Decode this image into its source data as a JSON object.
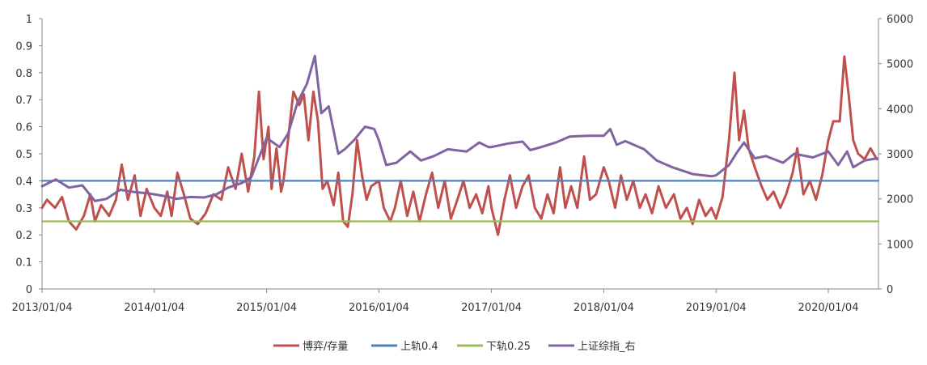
{
  "chart_data": {
    "type": "line",
    "title": "",
    "x_ticks": [
      "2013/01/04",
      "2014/01/04",
      "2015/01/04",
      "2016/01/04",
      "2017/01/04",
      "2018/01/04",
      "2019/01/04",
      "2020/01/04"
    ],
    "x_range": [
      "2013-01-04",
      "2020-06-15"
    ],
    "y_left": {
      "min": 0,
      "max": 1,
      "step": 0.1,
      "ticks": [
        "0",
        "0.1",
        "0.2",
        "0.3",
        "0.4",
        "0.5",
        "0.6",
        "0.7",
        "0.8",
        "0.9",
        "1"
      ]
    },
    "y_right": {
      "min": 0,
      "max": 6000,
      "step": 1000,
      "ticks": [
        "0",
        "1000",
        "2000",
        "3000",
        "4000",
        "5000",
        "6000"
      ]
    },
    "grid": false,
    "legend_position": "bottom",
    "series": [
      {
        "name": "博弈/存量",
        "color": "#c0504d",
        "axis": "left",
        "points": [
          [
            "2013-01-04",
            0.3
          ],
          [
            "2013-01-20",
            0.33
          ],
          [
            "2013-02-15",
            0.3
          ],
          [
            "2013-03-10",
            0.34
          ],
          [
            "2013-04-01",
            0.25
          ],
          [
            "2013-04-25",
            0.22
          ],
          [
            "2013-05-20",
            0.27
          ],
          [
            "2013-06-10",
            0.35
          ],
          [
            "2013-06-25",
            0.25
          ],
          [
            "2013-07-15",
            0.31
          ],
          [
            "2013-08-10",
            0.27
          ],
          [
            "2013-09-01",
            0.33
          ],
          [
            "2013-09-20",
            0.46
          ],
          [
            "2013-10-10",
            0.33
          ],
          [
            "2013-11-01",
            0.42
          ],
          [
            "2013-11-20",
            0.27
          ],
          [
            "2013-12-10",
            0.37
          ],
          [
            "2014-01-04",
            0.3
          ],
          [
            "2014-01-25",
            0.27
          ],
          [
            "2014-02-15",
            0.36
          ],
          [
            "2014-03-01",
            0.27
          ],
          [
            "2014-03-20",
            0.43
          ],
          [
            "2014-04-10",
            0.35
          ],
          [
            "2014-05-01",
            0.26
          ],
          [
            "2014-05-25",
            0.24
          ],
          [
            "2014-06-20",
            0.28
          ],
          [
            "2014-07-15",
            0.35
          ],
          [
            "2014-08-10",
            0.33
          ],
          [
            "2014-09-01",
            0.45
          ],
          [
            "2014-09-25",
            0.37
          ],
          [
            "2014-10-15",
            0.5
          ],
          [
            "2014-11-05",
            0.36
          ],
          [
            "2014-11-25",
            0.49
          ],
          [
            "2014-12-10",
            0.73
          ],
          [
            "2014-12-25",
            0.48
          ],
          [
            "2015-01-10",
            0.6
          ],
          [
            "2015-01-20",
            0.37
          ],
          [
            "2015-02-05",
            0.52
          ],
          [
            "2015-02-20",
            0.36
          ],
          [
            "2015-02-28",
            0.4
          ],
          [
            "2015-04-01",
            0.73
          ],
          [
            "2015-04-20",
            0.68
          ],
          [
            "2015-05-05",
            0.72
          ],
          [
            "2015-05-20",
            0.55
          ],
          [
            "2015-06-05",
            0.73
          ],
          [
            "2015-06-20",
            0.62
          ],
          [
            "2015-07-05",
            0.37
          ],
          [
            "2015-07-20",
            0.4
          ],
          [
            "2015-08-10",
            0.31
          ],
          [
            "2015-08-25",
            0.43
          ],
          [
            "2015-09-10",
            0.25
          ],
          [
            "2015-09-25",
            0.23
          ],
          [
            "2015-10-10",
            0.35
          ],
          [
            "2015-10-25",
            0.55
          ],
          [
            "2015-11-10",
            0.42
          ],
          [
            "2015-11-25",
            0.33
          ],
          [
            "2015-12-10",
            0.38
          ],
          [
            "2016-01-04",
            0.4
          ],
          [
            "2016-01-20",
            0.3
          ],
          [
            "2016-02-10",
            0.25
          ],
          [
            "2016-02-25",
            0.3
          ],
          [
            "2016-03-15",
            0.4
          ],
          [
            "2016-04-05",
            0.27
          ],
          [
            "2016-04-25",
            0.36
          ],
          [
            "2016-05-15",
            0.25
          ],
          [
            "2016-06-05",
            0.35
          ],
          [
            "2016-06-25",
            0.43
          ],
          [
            "2016-07-15",
            0.3
          ],
          [
            "2016-08-05",
            0.4
          ],
          [
            "2016-08-25",
            0.26
          ],
          [
            "2016-09-15",
            0.33
          ],
          [
            "2016-10-05",
            0.4
          ],
          [
            "2016-10-25",
            0.3
          ],
          [
            "2016-11-15",
            0.35
          ],
          [
            "2016-12-05",
            0.28
          ],
          [
            "2016-12-25",
            0.38
          ],
          [
            "2017-01-04",
            0.3
          ],
          [
            "2017-01-25",
            0.2
          ],
          [
            "2017-02-15",
            0.33
          ],
          [
            "2017-03-05",
            0.42
          ],
          [
            "2017-03-25",
            0.3
          ],
          [
            "2017-04-15",
            0.38
          ],
          [
            "2017-05-05",
            0.42
          ],
          [
            "2017-05-25",
            0.3
          ],
          [
            "2017-06-15",
            0.26
          ],
          [
            "2017-07-05",
            0.35
          ],
          [
            "2017-07-25",
            0.28
          ],
          [
            "2017-08-15",
            0.45
          ],
          [
            "2017-09-01",
            0.3
          ],
          [
            "2017-09-20",
            0.38
          ],
          [
            "2017-10-10",
            0.3
          ],
          [
            "2017-11-01",
            0.49
          ],
          [
            "2017-11-20",
            0.33
          ],
          [
            "2017-12-10",
            0.35
          ],
          [
            "2018-01-04",
            0.45
          ],
          [
            "2018-01-20",
            0.4
          ],
          [
            "2018-02-10",
            0.3
          ],
          [
            "2018-03-01",
            0.42
          ],
          [
            "2018-03-20",
            0.33
          ],
          [
            "2018-04-10",
            0.4
          ],
          [
            "2018-05-01",
            0.3
          ],
          [
            "2018-05-20",
            0.35
          ],
          [
            "2018-06-10",
            0.28
          ],
          [
            "2018-07-01",
            0.38
          ],
          [
            "2018-07-25",
            0.3
          ],
          [
            "2018-08-20",
            0.35
          ],
          [
            "2018-09-10",
            0.26
          ],
          [
            "2018-10-01",
            0.3
          ],
          [
            "2018-10-20",
            0.24
          ],
          [
            "2018-11-10",
            0.33
          ],
          [
            "2018-12-01",
            0.27
          ],
          [
            "2018-12-20",
            0.3
          ],
          [
            "2019-01-04",
            0.26
          ],
          [
            "2019-01-25",
            0.34
          ],
          [
            "2019-02-15",
            0.55
          ],
          [
            "2019-03-05",
            0.8
          ],
          [
            "2019-03-20",
            0.55
          ],
          [
            "2019-04-05",
            0.66
          ],
          [
            "2019-04-20",
            0.52
          ],
          [
            "2019-05-10",
            0.45
          ],
          [
            "2019-06-01",
            0.38
          ],
          [
            "2019-06-20",
            0.33
          ],
          [
            "2019-07-10",
            0.36
          ],
          [
            "2019-08-01",
            0.3
          ],
          [
            "2019-08-20",
            0.35
          ],
          [
            "2019-09-10",
            0.43
          ],
          [
            "2019-09-25",
            0.52
          ],
          [
            "2019-10-15",
            0.35
          ],
          [
            "2019-11-05",
            0.4
          ],
          [
            "2019-11-25",
            0.33
          ],
          [
            "2019-12-15",
            0.42
          ],
          [
            "2020-01-04",
            0.55
          ],
          [
            "2020-01-20",
            0.62
          ],
          [
            "2020-02-10",
            0.62
          ],
          [
            "2020-02-25",
            0.86
          ],
          [
            "2020-03-10",
            0.72
          ],
          [
            "2020-03-25",
            0.55
          ],
          [
            "2020-04-10",
            0.5
          ],
          [
            "2020-05-01",
            0.48
          ],
          [
            "2020-05-20",
            0.52
          ],
          [
            "2020-06-10",
            0.48
          ]
        ]
      },
      {
        "name": "上轨0.4",
        "color": "#4f81bd",
        "axis": "left",
        "points": [
          [
            "2013-01-04",
            0.4
          ],
          [
            "2020-06-15",
            0.4
          ]
        ]
      },
      {
        "name": "下轨0.25",
        "color": "#9bbb59",
        "axis": "left",
        "points": [
          [
            "2013-01-04",
            0.25
          ],
          [
            "2020-06-15",
            0.25
          ]
        ]
      },
      {
        "name": "上证综指_右",
        "color": "#8064a2",
        "axis": "right",
        "points": [
          [
            "2013-01-04",
            2280
          ],
          [
            "2013-02-18",
            2430
          ],
          [
            "2013-04-01",
            2250
          ],
          [
            "2013-05-15",
            2300
          ],
          [
            "2013-06-25",
            1950
          ],
          [
            "2013-08-01",
            2000
          ],
          [
            "2013-09-15",
            2200
          ],
          [
            "2013-11-01",
            2150
          ],
          [
            "2013-12-15",
            2120
          ],
          [
            "2014-01-04",
            2100
          ],
          [
            "2014-02-15",
            2050
          ],
          [
            "2014-03-15",
            2000
          ],
          [
            "2014-05-01",
            2040
          ],
          [
            "2014-06-15",
            2030
          ],
          [
            "2014-07-25",
            2100
          ],
          [
            "2014-09-01",
            2250
          ],
          [
            "2014-10-15",
            2350
          ],
          [
            "2014-11-15",
            2480
          ],
          [
            "2014-12-15",
            3000
          ],
          [
            "2015-01-04",
            3350
          ],
          [
            "2015-02-15",
            3150
          ],
          [
            "2015-03-15",
            3450
          ],
          [
            "2015-04-15",
            4150
          ],
          [
            "2015-05-15",
            4550
          ],
          [
            "2015-06-10",
            5170
          ],
          [
            "2015-07-01",
            3900
          ],
          [
            "2015-07-25",
            4050
          ],
          [
            "2015-08-25",
            3000
          ],
          [
            "2015-09-15",
            3100
          ],
          [
            "2015-10-15",
            3300
          ],
          [
            "2015-11-20",
            3600
          ],
          [
            "2015-12-20",
            3550
          ],
          [
            "2016-01-04",
            3300
          ],
          [
            "2016-01-28",
            2750
          ],
          [
            "2016-03-01",
            2800
          ],
          [
            "2016-04-15",
            3050
          ],
          [
            "2016-05-20",
            2850
          ],
          [
            "2016-07-01",
            2950
          ],
          [
            "2016-08-15",
            3100
          ],
          [
            "2016-10-15",
            3050
          ],
          [
            "2016-11-25",
            3250
          ],
          [
            "2016-12-25",
            3150
          ],
          [
            "2017-01-04",
            3150
          ],
          [
            "2017-03-01",
            3230
          ],
          [
            "2017-04-15",
            3270
          ],
          [
            "2017-05-10",
            3080
          ],
          [
            "2017-06-15",
            3150
          ],
          [
            "2017-08-01",
            3250
          ],
          [
            "2017-09-15",
            3380
          ],
          [
            "2017-11-15",
            3400
          ],
          [
            "2018-01-04",
            3400
          ],
          [
            "2018-01-25",
            3550
          ],
          [
            "2018-02-15",
            3200
          ],
          [
            "2018-03-15",
            3280
          ],
          [
            "2018-05-15",
            3100
          ],
          [
            "2018-06-25",
            2850
          ],
          [
            "2018-08-15",
            2700
          ],
          [
            "2018-10-20",
            2550
          ],
          [
            "2018-12-20",
            2500
          ],
          [
            "2019-01-04",
            2520
          ],
          [
            "2019-02-15",
            2750
          ],
          [
            "2019-03-15",
            3050
          ],
          [
            "2019-04-05",
            3250
          ],
          [
            "2019-05-10",
            2900
          ],
          [
            "2019-06-15",
            2950
          ],
          [
            "2019-08-10",
            2800
          ],
          [
            "2019-09-15",
            3000
          ],
          [
            "2019-11-15",
            2920
          ],
          [
            "2020-01-04",
            3050
          ],
          [
            "2020-02-05",
            2750
          ],
          [
            "2020-03-05",
            3050
          ],
          [
            "2020-03-25",
            2700
          ],
          [
            "2020-05-01",
            2850
          ],
          [
            "2020-06-10",
            2900
          ]
        ]
      }
    ]
  }
}
